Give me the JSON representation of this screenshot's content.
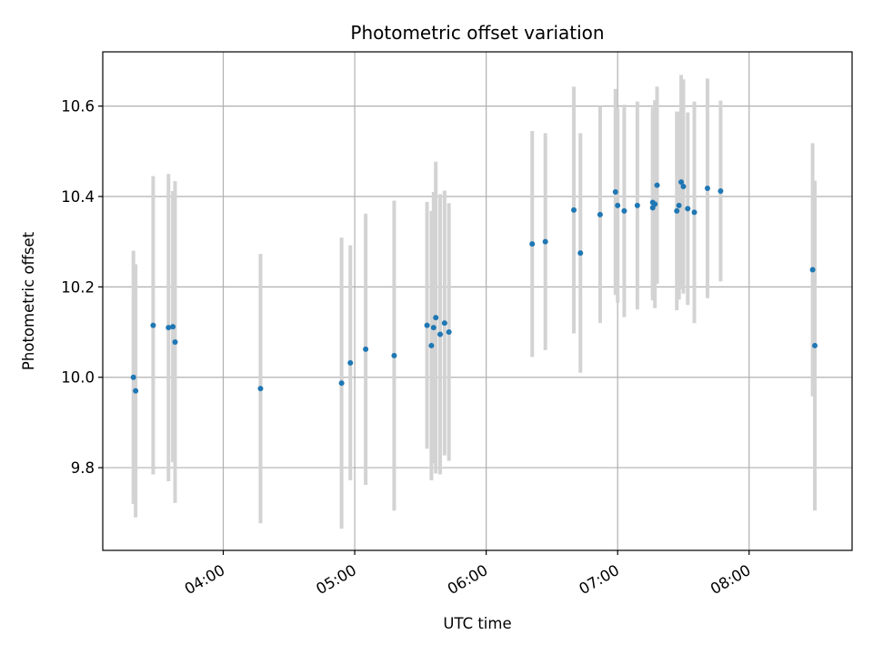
{
  "chart_data": {
    "type": "scatter",
    "title": "Photometric offset variation",
    "xlabel": "UTC time",
    "ylabel": "Photometric offset",
    "xlim": [
      "03:05",
      "08:47"
    ],
    "ylim": [
      9.617,
      10.72
    ],
    "x_ticks": [
      "04:00",
      "05:00",
      "06:00",
      "07:00",
      "08:00"
    ],
    "y_ticks": [
      "9.8",
      "10.0",
      "10.2",
      "10.4",
      "10.6"
    ],
    "grid": true,
    "colors": {
      "point": "#1f77b4",
      "errorbar": "#d3d3d3",
      "grid": "#b0b0b0",
      "axes": "#000000"
    },
    "points": [
      {
        "x": "03:19",
        "y": 10.0,
        "err": 0.28
      },
      {
        "x": "03:20",
        "y": 9.97,
        "err": 0.28
      },
      {
        "x": "03:28",
        "y": 10.115,
        "err": 0.33
      },
      {
        "x": "03:35",
        "y": 10.11,
        "err": 0.34
      },
      {
        "x": "03:37",
        "y": 10.112,
        "err": 0.3
      },
      {
        "x": "03:38",
        "y": 10.078,
        "err": 0.356
      },
      {
        "x": "04:17",
        "y": 9.975,
        "err": 0.298
      },
      {
        "x": "04:54",
        "y": 9.987,
        "err": 0.322
      },
      {
        "x": "04:58",
        "y": 10.032,
        "err": 0.26
      },
      {
        "x": "05:05",
        "y": 10.062,
        "err": 0.3
      },
      {
        "x": "05:18",
        "y": 10.048,
        "err": 0.343
      },
      {
        "x": "05:33",
        "y": 10.115,
        "err": 0.273
      },
      {
        "x": "05:35",
        "y": 10.07,
        "err": 0.298
      },
      {
        "x": "05:36",
        "y": 10.11,
        "err": 0.3
      },
      {
        "x": "05:37",
        "y": 10.132,
        "err": 0.345
      },
      {
        "x": "05:39",
        "y": 10.095,
        "err": 0.31
      },
      {
        "x": "05:41",
        "y": 10.12,
        "err": 0.293
      },
      {
        "x": "05:43",
        "y": 10.1,
        "err": 0.285
      },
      {
        "x": "06:21",
        "y": 10.295,
        "err": 0.25
      },
      {
        "x": "06:27",
        "y": 10.3,
        "err": 0.24
      },
      {
        "x": "06:40",
        "y": 10.37,
        "err": 0.273
      },
      {
        "x": "06:43",
        "y": 10.275,
        "err": 0.265
      },
      {
        "x": "06:52",
        "y": 10.36,
        "err": 0.24
      },
      {
        "x": "06:59",
        "y": 10.41,
        "err": 0.228
      },
      {
        "x": "07:00",
        "y": 10.38,
        "err": 0.215
      },
      {
        "x": "07:03",
        "y": 10.368,
        "err": 0.235
      },
      {
        "x": "07:09",
        "y": 10.38,
        "err": 0.23
      },
      {
        "x": "07:16",
        "y": 10.387,
        "err": 0.21
      },
      {
        "x": "07:16",
        "y": 10.375,
        "err": 0.205
      },
      {
        "x": "07:17",
        "y": 10.383,
        "err": 0.23
      },
      {
        "x": "07:18",
        "y": 10.425,
        "err": 0.218
      },
      {
        "x": "07:27",
        "y": 10.368,
        "err": 0.22
      },
      {
        "x": "07:28",
        "y": 10.38,
        "err": 0.208
      },
      {
        "x": "07:29",
        "y": 10.432,
        "err": 0.237
      },
      {
        "x": "07:30",
        "y": 10.422,
        "err": 0.237
      },
      {
        "x": "07:32",
        "y": 10.373,
        "err": 0.213
      },
      {
        "x": "07:35",
        "y": 10.365,
        "err": 0.245
      },
      {
        "x": "07:41",
        "y": 10.418,
        "err": 0.243
      },
      {
        "x": "07:47",
        "y": 10.412,
        "err": 0.2
      },
      {
        "x": "08:29",
        "y": 10.238,
        "err": 0.28
      },
      {
        "x": "08:30",
        "y": 10.07,
        "err": 0.365
      }
    ]
  }
}
